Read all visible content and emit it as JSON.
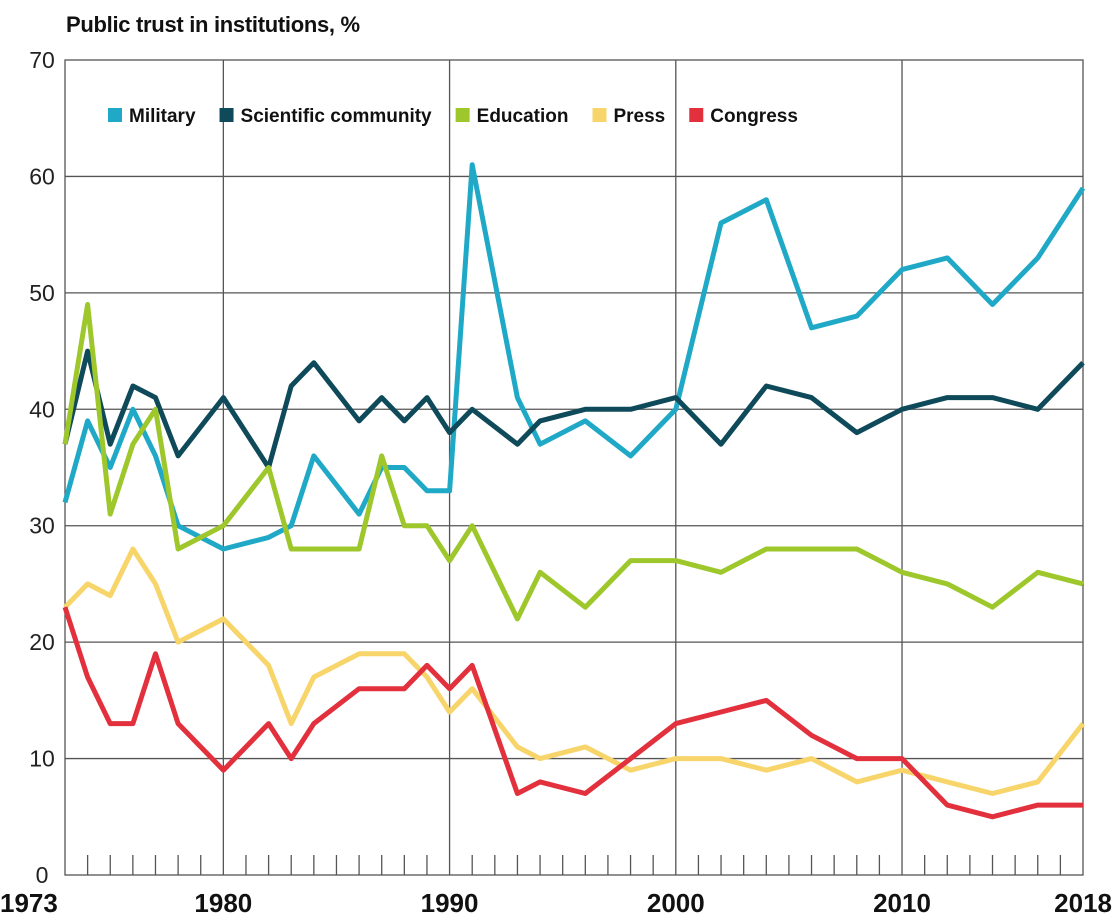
{
  "chart_data": {
    "type": "line",
    "title": "Public trust in institutions, %",
    "xlabel": "",
    "ylabel": "",
    "xlim": [
      1973,
      2018
    ],
    "ylim": [
      0,
      70
    ],
    "yticks": [
      0,
      10,
      20,
      30,
      40,
      50,
      60,
      70
    ],
    "xtick_labels": [
      "1973",
      "1980",
      "1990",
      "2000",
      "2010",
      "2018"
    ],
    "grid": true,
    "legend_position": "top-left",
    "series": [
      {
        "name": "Military",
        "color": "#1fa9c7",
        "x": [
          1973,
          1974,
          1975,
          1976,
          1977,
          1978,
          1980,
          1982,
          1983,
          1984,
          1986,
          1987,
          1988,
          1989,
          1990,
          1991,
          1993,
          1994,
          1996,
          1998,
          2000,
          2002,
          2004,
          2006,
          2008,
          2010,
          2012,
          2014,
          2016,
          2018
        ],
        "y": [
          32,
          39,
          35,
          40,
          36,
          30,
          28,
          29,
          30,
          36,
          31,
          35,
          35,
          33,
          33,
          61,
          41,
          37,
          39,
          36,
          40,
          56,
          58,
          47,
          48,
          52,
          53,
          49,
          53,
          59
        ]
      },
      {
        "name": "Scientific community",
        "color": "#0f4a5a",
        "x": [
          1973,
          1974,
          1975,
          1976,
          1977,
          1978,
          1980,
          1982,
          1983,
          1984,
          1986,
          1987,
          1988,
          1989,
          1990,
          1991,
          1993,
          1994,
          1996,
          1998,
          2000,
          2002,
          2004,
          2006,
          2008,
          2010,
          2012,
          2014,
          2016,
          2018
        ],
        "y": [
          37,
          45,
          37,
          42,
          41,
          36,
          41,
          35,
          42,
          44,
          39,
          41,
          39,
          41,
          38,
          40,
          37,
          39,
          40,
          40,
          41,
          37,
          42,
          41,
          38,
          40,
          41,
          41,
          40,
          44
        ]
      },
      {
        "name": "Education",
        "color": "#9dc72b",
        "x": [
          1973,
          1974,
          1975,
          1976,
          1977,
          1978,
          1980,
          1982,
          1983,
          1984,
          1986,
          1987,
          1988,
          1989,
          1990,
          1991,
          1993,
          1994,
          1996,
          1998,
          2000,
          2002,
          2004,
          2006,
          2008,
          2010,
          2012,
          2014,
          2016,
          2018
        ],
        "y": [
          37,
          49,
          31,
          37,
          40,
          28,
          30,
          35,
          28,
          28,
          28,
          36,
          30,
          30,
          27,
          30,
          22,
          26,
          23,
          27,
          27,
          26,
          28,
          28,
          28,
          26,
          25,
          23,
          26,
          25
        ]
      },
      {
        "name": "Press",
        "color": "#f7d56a",
        "x": [
          1973,
          1974,
          1975,
          1976,
          1977,
          1978,
          1980,
          1982,
          1983,
          1984,
          1986,
          1987,
          1988,
          1989,
          1990,
          1991,
          1993,
          1994,
          1996,
          1998,
          2000,
          2002,
          2004,
          2006,
          2008,
          2010,
          2012,
          2014,
          2016,
          2018
        ],
        "y": [
          23,
          25,
          24,
          28,
          25,
          20,
          22,
          18,
          13,
          17,
          19,
          19,
          19,
          17,
          14,
          16,
          11,
          10,
          11,
          9,
          10,
          10,
          9,
          10,
          8,
          9,
          8,
          7,
          8,
          13
        ]
      },
      {
        "name": "Congress",
        "color": "#e3303d",
        "x": [
          1973,
          1974,
          1975,
          1976,
          1977,
          1978,
          1980,
          1982,
          1983,
          1984,
          1986,
          1987,
          1988,
          1989,
          1990,
          1991,
          1993,
          1994,
          1996,
          1998,
          2000,
          2002,
          2004,
          2006,
          2008,
          2010,
          2012,
          2014,
          2016,
          2018
        ],
        "y": [
          23,
          17,
          13,
          13,
          19,
          13,
          9,
          13,
          10,
          13,
          16,
          16,
          16,
          18,
          16,
          18,
          7,
          8,
          7,
          10,
          13,
          14,
          15,
          12,
          10,
          10,
          6,
          5,
          6,
          6
        ]
      }
    ]
  }
}
